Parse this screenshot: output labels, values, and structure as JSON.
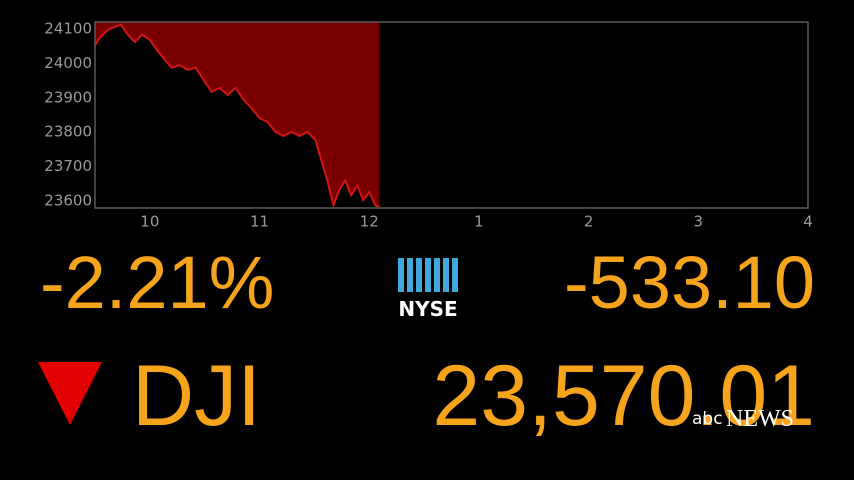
{
  "chart_data": {
    "type": "line",
    "x": [
      9.5,
      9.545,
      9.618,
      9.682,
      9.736,
      9.8,
      9.864,
      9.927,
      10.0,
      10.064,
      10.136,
      10.2,
      10.273,
      10.345,
      10.418,
      10.491,
      10.564,
      10.636,
      10.709,
      10.782,
      10.855,
      10.927,
      11.0,
      11.073,
      11.145,
      11.218,
      11.291,
      11.364,
      11.436,
      11.509,
      11.564,
      11.618,
      11.673,
      11.727,
      11.782,
      11.836,
      11.891,
      11.945,
      12.0,
      12.055,
      12.091
    ],
    "values": [
      24053,
      24074,
      24097,
      24106,
      24112,
      24083,
      24062,
      24083,
      24068,
      24039,
      24010,
      23987,
      23995,
      23981,
      23987,
      23952,
      23917,
      23929,
      23908,
      23929,
      23894,
      23870,
      23841,
      23830,
      23801,
      23789,
      23801,
      23789,
      23801,
      23777,
      23718,
      23660,
      23588,
      23632,
      23660,
      23617,
      23645,
      23603,
      23626,
      23588,
      23583
    ],
    "color": "#d11414",
    "fill_color": "#7a0000",
    "xlim": [
      9.5,
      16
    ],
    "ylim": [
      23580,
      24120
    ],
    "xticks": [
      10,
      11,
      12,
      {
        "value": 13,
        "label": "1"
      },
      {
        "value": 14,
        "label": "2"
      },
      {
        "value": 15,
        "label": "3"
      },
      {
        "value": 16,
        "label": "4"
      }
    ],
    "yticks": [
      23600,
      23700,
      23800,
      23900,
      24000,
      24100
    ],
    "change_percent": "-2.21%",
    "change_points": "-533.10",
    "symbol": "DJI",
    "price": "23,570.01",
    "exchange": "NYSE",
    "watermark": [
      "abc",
      "NEWS"
    ]
  }
}
